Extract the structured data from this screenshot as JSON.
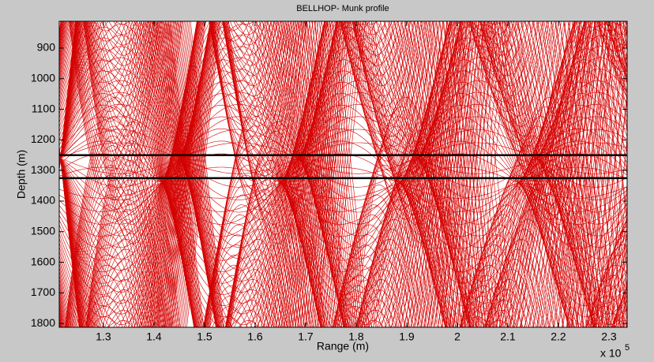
{
  "chart_data": {
    "type": "ray-trace",
    "title": "BELLHOP- Munk profile",
    "x_label": "Range (m)",
    "y_label": "Depth (m)",
    "x_exponent": {
      "base": "x 10",
      "power": "5"
    },
    "xlim": [
      121250,
      233600
    ],
    "ylim": [
      812.5,
      1812.5
    ],
    "y_reversed": true,
    "xticks": [
      {
        "value": 130000,
        "label": "1.3"
      },
      {
        "value": 140000,
        "label": "1.4"
      },
      {
        "value": 150000,
        "label": "1.5"
      },
      {
        "value": 160000,
        "label": "1.6"
      },
      {
        "value": 170000,
        "label": "1.7"
      },
      {
        "value": 180000,
        "label": "1.8"
      },
      {
        "value": 190000,
        "label": "1.9"
      },
      {
        "value": 200000,
        "label": "2"
      },
      {
        "value": 210000,
        "label": "2.1"
      },
      {
        "value": 220000,
        "label": "2.2"
      },
      {
        "value": 230000,
        "label": "2.3"
      }
    ],
    "yticks": [
      900,
      1000,
      1100,
      1200,
      1300,
      1400,
      1500,
      1600,
      1700,
      1800
    ],
    "ray_color": "#d40000",
    "hlines": [
      1250,
      1325
    ],
    "hline_color": "#000000"
  }
}
